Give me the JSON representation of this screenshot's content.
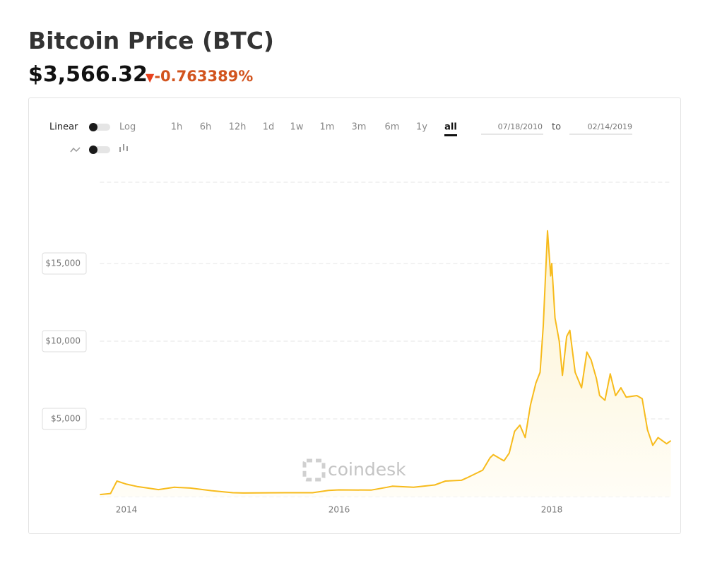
{
  "header": {
    "title": "Bitcoin Price (BTC)",
    "price": "$3,566.32",
    "change": "-0.763389%"
  },
  "controls": {
    "scale_linear": "Linear",
    "scale_log": "Log",
    "ranges": [
      "1h",
      "6h",
      "12h",
      "1d",
      "1w",
      "1m",
      "3m",
      "6m",
      "1y",
      "all"
    ],
    "active_range": "all",
    "date_from": "07/18/2010",
    "date_sep": "to",
    "date_to": "02/14/2019"
  },
  "watermark": "coindesk",
  "chart_data": {
    "type": "area",
    "xlim": [
      2013.75,
      2019.12
    ],
    "xticks": [
      2014,
      2016,
      2018
    ],
    "ylim": [
      0,
      20000
    ],
    "yticks": [
      {
        "value": 5000,
        "label": "$5,000"
      },
      {
        "value": 10000,
        "label": "$10,000"
      },
      {
        "value": 15000,
        "label": "$15,000"
      }
    ],
    "grid": true,
    "series": [
      {
        "name": "BTC",
        "color": "#f7bb1c",
        "x": [
          2013.75,
          2013.85,
          2013.91,
          2014.0,
          2014.1,
          2014.2,
          2014.3,
          2014.45,
          2014.6,
          2014.8,
          2015.0,
          2015.1,
          2015.5,
          2015.75,
          2015.9,
          2016.0,
          2016.3,
          2016.45,
          2016.5,
          2016.7,
          2016.9,
          2017.0,
          2017.15,
          2017.2,
          2017.35,
          2017.42,
          2017.45,
          2017.5,
          2017.55,
          2017.6,
          2017.65,
          2017.7,
          2017.75,
          2017.8,
          2017.85,
          2017.89,
          2017.92,
          2017.96,
          2017.99,
          2018.0,
          2018.03,
          2018.07,
          2018.1,
          2018.14,
          2018.17,
          2018.22,
          2018.28,
          2018.33,
          2018.37,
          2018.42,
          2018.45,
          2018.5,
          2018.55,
          2018.6,
          2018.65,
          2018.7,
          2018.8,
          2018.85,
          2018.9,
          2018.95,
          2019.0,
          2019.08,
          2019.12
        ],
        "values": [
          130,
          200,
          1000,
          800,
          650,
          550,
          450,
          600,
          550,
          380,
          250,
          230,
          250,
          250,
          400,
          430,
          420,
          600,
          670,
          600,
          750,
          1000,
          1050,
          1200,
          1700,
          2500,
          2700,
          2500,
          2300,
          2800,
          4200,
          4600,
          3800,
          5900,
          7300,
          8000,
          11000,
          17100,
          14200,
          15000,
          11500,
          10000,
          7800,
          10300,
          10700,
          8000,
          7000,
          9300,
          8800,
          7600,
          6500,
          6200,
          7900,
          6500,
          7000,
          6400,
          6500,
          6300,
          4300,
          3300,
          3800,
          3400,
          3600
        ]
      }
    ]
  }
}
